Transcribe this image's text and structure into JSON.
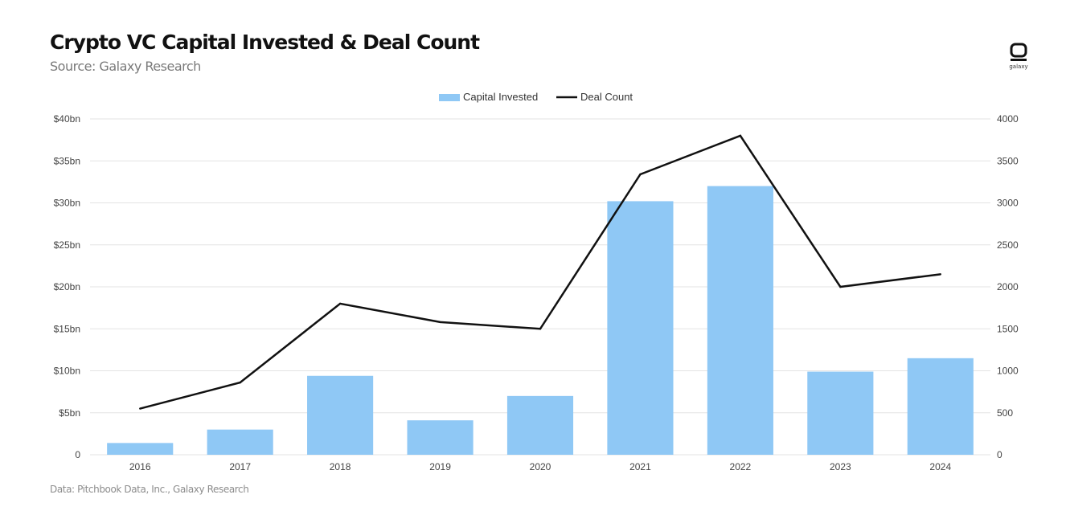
{
  "header": {
    "title": "Crypto VC Capital Invested & Deal Count",
    "subtitle": "Source: Galaxy Research",
    "logo_text": "galaxy"
  },
  "footer": {
    "note": "Data: Pitchbook Data, Inc., Galaxy Research"
  },
  "colors": {
    "bar": "#8fc8f5",
    "line": "#111111",
    "grid": "#e3e3e3"
  },
  "chart_data": {
    "type": "bar",
    "title": "Crypto VC Capital Invested & Deal Count",
    "subtitle": "Source: Galaxy Research",
    "categories": [
      "2016",
      "2017",
      "2018",
      "2019",
      "2020",
      "2021",
      "2022",
      "2023",
      "2024"
    ],
    "series": [
      {
        "name": "Capital Invested",
        "type": "bar",
        "axis": "left",
        "values": [
          1.4,
          3.0,
          9.4,
          4.1,
          7.0,
          30.2,
          32.0,
          9.9,
          11.5
        ]
      },
      {
        "name": "Deal Count",
        "type": "line",
        "axis": "right",
        "values": [
          550,
          860,
          1800,
          1580,
          1500,
          3340,
          3800,
          2000,
          2150
        ]
      }
    ],
    "y_left": {
      "min": 0,
      "max": 40,
      "ticks": [
        {
          "value": 0,
          "label": "0"
        },
        {
          "value": 5,
          "label": "$5bn"
        },
        {
          "value": 10,
          "label": "$10bn"
        },
        {
          "value": 15,
          "label": "$15bn"
        },
        {
          "value": 20,
          "label": "$20bn"
        },
        {
          "value": 25,
          "label": "$25bn"
        },
        {
          "value": 30,
          "label": "$30bn"
        },
        {
          "value": 35,
          "label": "$35bn"
        },
        {
          "value": 40,
          "label": "$40bn"
        }
      ]
    },
    "y_right": {
      "min": 0,
      "max": 4000,
      "ticks": [
        {
          "value": 0,
          "label": "0"
        },
        {
          "value": 500,
          "label": "500"
        },
        {
          "value": 1000,
          "label": "1000"
        },
        {
          "value": 1500,
          "label": "1500"
        },
        {
          "value": 2000,
          "label": "2000"
        },
        {
          "value": 2500,
          "label": "2500"
        },
        {
          "value": 3000,
          "label": "3000"
        },
        {
          "value": 3500,
          "label": "3500"
        },
        {
          "value": 4000,
          "label": "4000"
        }
      ]
    },
    "grid": true,
    "legend": "top-center"
  }
}
